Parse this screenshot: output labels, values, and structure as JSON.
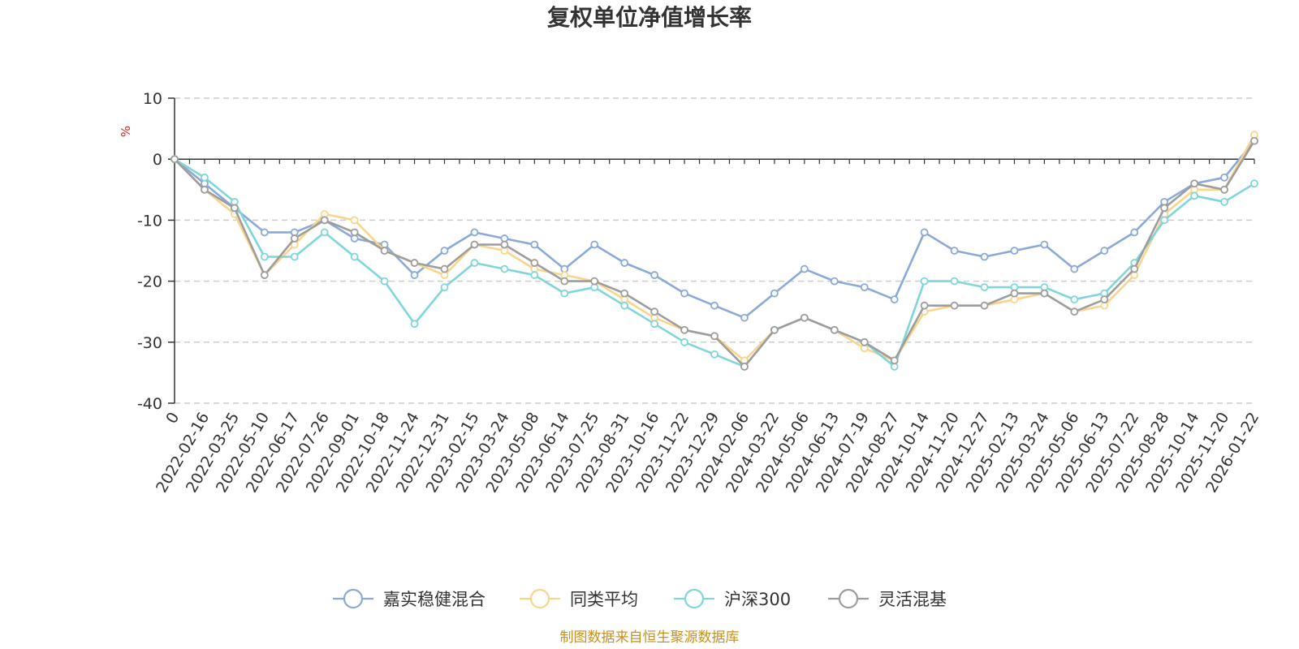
{
  "chart_data": {
    "type": "line",
    "title": "复权单位净值增长率",
    "ylabel": "%",
    "xlabel": "",
    "ylim": [
      -40,
      10
    ],
    "yticks": [
      "10",
      "0",
      "-10",
      "-20",
      "-30",
      "-40"
    ],
    "ytick_values": [
      10,
      0,
      -10,
      -20,
      -30,
      -40
    ],
    "grid": true,
    "legend_position": "bottom",
    "source": "制图数据来自恒生聚源数据库",
    "categories": [
      "0",
      "2022-02-16",
      "2022-03-25",
      "2022-05-10",
      "2022-06-17",
      "2022-07-26",
      "2022-09-01",
      "2022-10-18",
      "2022-11-24",
      "2022-12-31",
      "2023-02-15",
      "2023-03-24",
      "2023-05-08",
      "2023-06-14",
      "2023-07-25",
      "2023-08-31",
      "2023-10-16",
      "2023-11-22",
      "2023-12-29",
      "2024-02-06",
      "2024-03-22",
      "2024-05-06",
      "2024-06-13",
      "2024-07-19",
      "2024-08-27",
      "2024-10-14",
      "2024-11-20",
      "2024-12-27",
      "2025-02-13",
      "2025-03-24",
      "2025-05-06",
      "2025-06-13",
      "2025-07-22",
      "2025-08-28",
      "2025-10-14",
      "2025-11-20",
      "2026-01-22"
    ],
    "series": [
      {
        "name": "嘉实稳健混合",
        "color": "#8aa9d9",
        "values": [
          0,
          -4,
          -8,
          -12,
          -12,
          -10,
          -13,
          -14,
          -19,
          -15,
          -12,
          -13,
          -14,
          -18,
          -14,
          -17,
          -19,
          -22,
          -24,
          -26,
          -22,
          -18,
          -20,
          -21,
          -23,
          -12,
          -15,
          -16,
          -15,
          -14,
          -18,
          -15,
          -12,
          -7,
          -4,
          -3,
          3
        ]
      },
      {
        "name": "同类平均",
        "color": "#f9d48c",
        "values": [
          0,
          -5,
          -9,
          -19,
          -14,
          -9,
          -10,
          -15,
          -17,
          -19,
          -14,
          -15,
          -18,
          -19,
          -20,
          -23,
          -26,
          -28,
          -29,
          -33,
          -28,
          -26,
          -28,
          -31,
          -33,
          -25,
          -24,
          -24,
          -23,
          -22,
          -25,
          -24,
          -19,
          -9,
          -5,
          -5,
          4
        ]
      },
      {
        "name": "沪深300",
        "color": "#7fd5d8",
        "values": [
          0,
          -3,
          -7,
          -16,
          -16,
          -12,
          -16,
          -20,
          -27,
          -21,
          -17,
          -18,
          -19,
          -22,
          -21,
          -24,
          -27,
          -30,
          -32,
          -34,
          -28,
          -26,
          -28,
          -30,
          -34,
          -20,
          -20,
          -21,
          -21,
          -21,
          -23,
          -22,
          -17,
          -10,
          -6,
          -7,
          -4
        ]
      },
      {
        "name": "灵活混基",
        "color": "#9d9d9d",
        "values": [
          0,
          -5,
          -8,
          -19,
          -13,
          -10,
          -12,
          -15,
          -17,
          -18,
          -14,
          -14,
          -17,
          -20,
          -20,
          -22,
          -25,
          -28,
          -29,
          -34,
          -28,
          -26,
          -28,
          -30,
          -33,
          -24,
          -24,
          -24,
          -22,
          -22,
          -25,
          -23,
          -18,
          -8,
          -4,
          -5,
          3
        ]
      }
    ]
  }
}
